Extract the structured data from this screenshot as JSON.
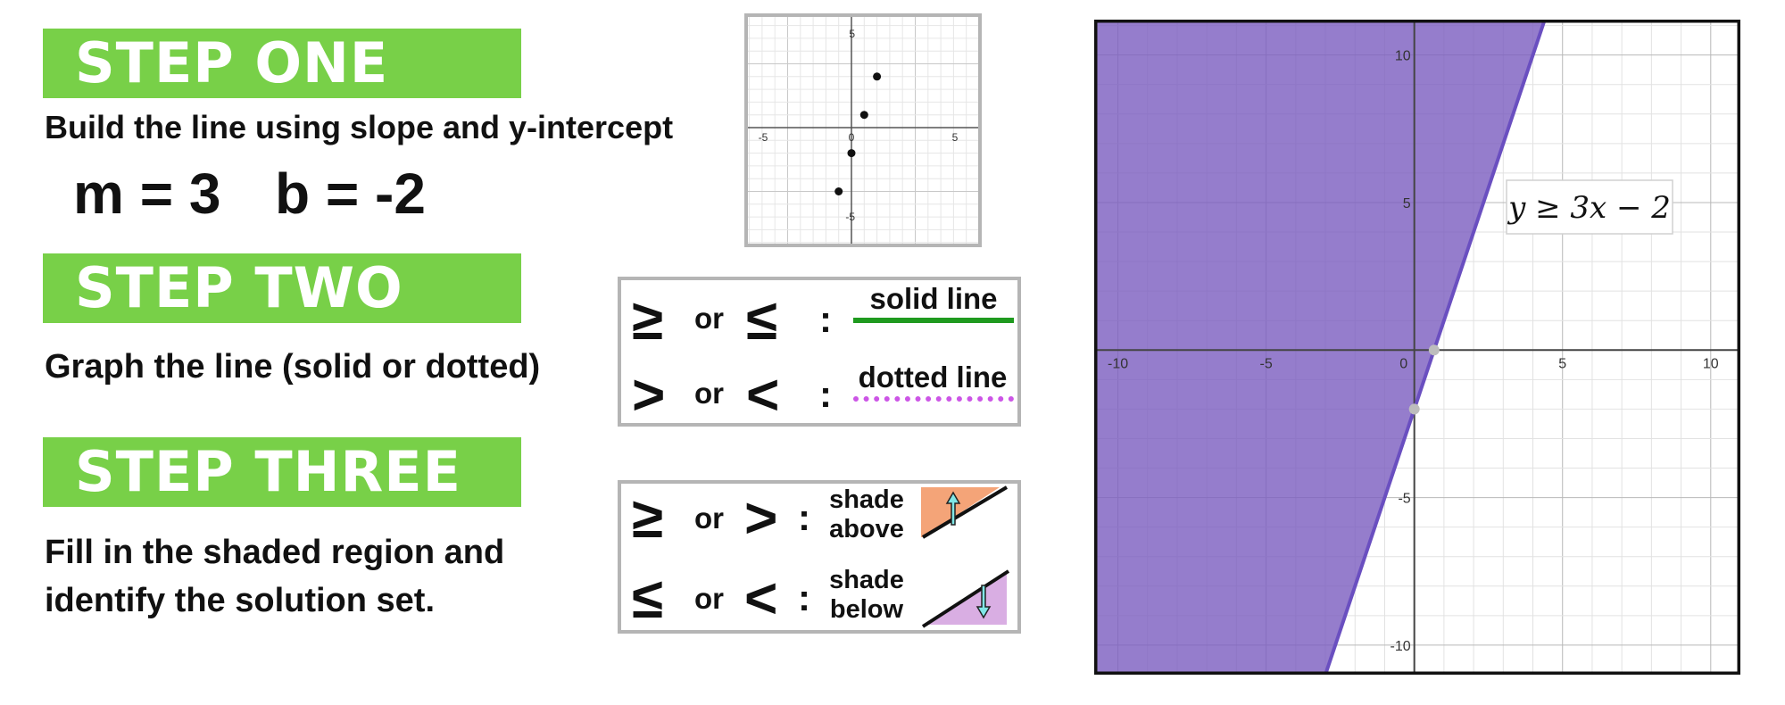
{
  "steps": [
    {
      "banner": "STEP ONE",
      "text": "Build the line using slope and y-intercept",
      "eq_m": "m = 3",
      "eq_b": "b = -2"
    },
    {
      "banner": "STEP TWO",
      "text": "Graph the line (solid or dotted)"
    },
    {
      "banner": "STEP THREE",
      "text_line1": "Fill in the shaded region and",
      "text_line2": "identify the solution set."
    }
  ],
  "line_style_box": {
    "row1": {
      "sym1": "≥",
      "or": "or",
      "sym2": "≤",
      "colon": ":",
      "label": "solid line",
      "line_color": "#1f9a1f"
    },
    "row2": {
      "sym1": ">",
      "or": "or",
      "sym2": "<",
      "colon": ":",
      "label": "dotted line",
      "line_color": "#cc55e6"
    }
  },
  "shade_box": {
    "row1": {
      "sym1": "≥",
      "or": "or",
      "sym2": ">",
      "colon": ":",
      "label_line1": "shade",
      "label_line2": "above",
      "fill_color": "#f4a478",
      "arrow_color": "#7fe6e6"
    },
    "row2": {
      "sym1": "≤",
      "or": "or",
      "sym2": "<",
      "colon": ":",
      "label_line1": "shade",
      "label_line2": "below",
      "fill_color": "#d9aee3",
      "arrow_color": "#7fe6e6"
    }
  },
  "small_graph": {
    "ticks_x": [
      "-5",
      "0",
      "5"
    ],
    "ticks_y": [
      "5",
      "-5"
    ],
    "points": [
      [
        -1,
        -5
      ],
      [
        0,
        -2
      ],
      [
        1,
        1
      ],
      [
        2,
        4
      ]
    ]
  },
  "main_graph": {
    "inequality": "y ≥ 3x − 2",
    "slope": 3,
    "intercept": -2,
    "shade_color": "#7b5cbf",
    "line_color": "#6a4fc0",
    "ticks_x": [
      "-10",
      "-5",
      "0",
      "5",
      "10"
    ],
    "ticks_y": [
      "10",
      "5",
      "-5",
      "-10"
    ],
    "xlim": [
      -10.8,
      11
    ],
    "ylim": [
      -11,
      11.2
    ],
    "points": [
      [
        0,
        -2
      ],
      [
        0.6667,
        0
      ]
    ]
  }
}
